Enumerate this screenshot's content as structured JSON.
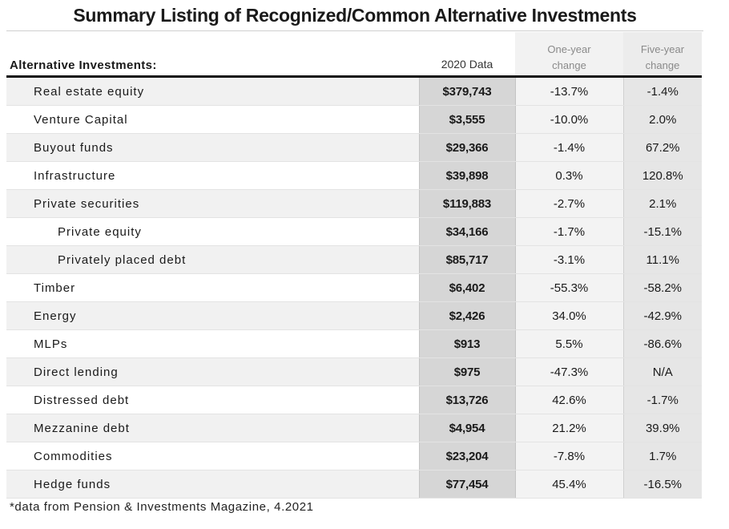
{
  "title": "Summary Listing of Recognized/Common Alternative Investments",
  "headers": {
    "name": "Alternative Investments:",
    "data": "2020 Data",
    "one_year_line1": "One-year",
    "one_year_line2": "change",
    "five_year_line1": "Five-year",
    "five_year_line2": "change"
  },
  "rows": [
    {
      "name": "Real estate equity",
      "value": "$379,743",
      "one": "-13.7%",
      "five": "-1.4%",
      "indent": false
    },
    {
      "name": "Venture Capital",
      "value": "$3,555",
      "one": "-10.0%",
      "five": "2.0%",
      "indent": false
    },
    {
      "name": "Buyout funds",
      "value": "$29,366",
      "one": "-1.4%",
      "five": "67.2%",
      "indent": false
    },
    {
      "name": "Infrastructure",
      "value": "$39,898",
      "one": "0.3%",
      "five": "120.8%",
      "indent": false
    },
    {
      "name": "Private securities",
      "value": "$119,883",
      "one": "-2.7%",
      "five": "2.1%",
      "indent": false
    },
    {
      "name": "Private equity",
      "value": "$34,166",
      "one": "-1.7%",
      "five": "-15.1%",
      "indent": true
    },
    {
      "name": "Privately placed debt",
      "value": "$85,717",
      "one": "-3.1%",
      "five": "11.1%",
      "indent": true
    },
    {
      "name": "Timber",
      "value": "$6,402",
      "one": "-55.3%",
      "five": "-58.2%",
      "indent": false
    },
    {
      "name": "Energy",
      "value": "$2,426",
      "one": "34.0%",
      "five": "-42.9%",
      "indent": false
    },
    {
      "name": "MLPs",
      "value": "$913",
      "one": "5.5%",
      "five": "-86.6%",
      "indent": false
    },
    {
      "name": "Direct lending",
      "value": "$975",
      "one": "-47.3%",
      "five": "N/A",
      "indent": false
    },
    {
      "name": "Distressed debt",
      "value": "$13,726",
      "one": "42.6%",
      "five": "-1.7%",
      "indent": false
    },
    {
      "name": "Mezzanine debt",
      "value": "$4,954",
      "one": "21.2%",
      "five": "39.9%",
      "indent": false
    },
    {
      "name": "Commodities",
      "value": "$23,204",
      "one": "-7.8%",
      "five": "1.7%",
      "indent": false
    },
    {
      "name": "Hedge funds",
      "value": "$77,454",
      "one": "45.4%",
      "five": "-16.5%",
      "indent": false
    }
  ],
  "footnote": "*data from Pension & Investments Magazine, 4.2021"
}
